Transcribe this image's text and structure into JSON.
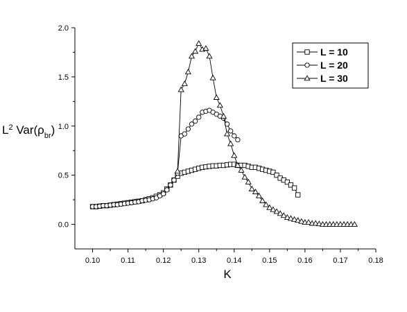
{
  "chart_data": {
    "type": "line",
    "title": "",
    "xlabel": "K",
    "ylabel": {
      "base": "L",
      "sup": "2",
      "middle": " Var(ρ",
      "sub": "br",
      "end": ")"
    },
    "xlim": [
      0.095,
      0.18
    ],
    "ylim": [
      -0.25,
      2.0
    ],
    "xticks": [
      "0.10",
      "0.11",
      "0.12",
      "0.13",
      "0.14",
      "0.15",
      "0.16",
      "0.17",
      "0.18"
    ],
    "yticks": [
      "0.0",
      "0.5",
      "1.0",
      "1.5",
      "2.0"
    ],
    "legend_position": "top-right",
    "grid": false,
    "series": [
      {
        "name": "L = 10",
        "marker": "square",
        "x": [
          0.1,
          0.101,
          0.102,
          0.103,
          0.104,
          0.105,
          0.106,
          0.107,
          0.108,
          0.109,
          0.11,
          0.111,
          0.112,
          0.113,
          0.114,
          0.115,
          0.116,
          0.117,
          0.118,
          0.119,
          0.12,
          0.121,
          0.122,
          0.123,
          0.124,
          0.125,
          0.126,
          0.127,
          0.128,
          0.129,
          0.13,
          0.131,
          0.132,
          0.133,
          0.134,
          0.135,
          0.136,
          0.137,
          0.138,
          0.139,
          0.14,
          0.141,
          0.142,
          0.143,
          0.144,
          0.145,
          0.146,
          0.147,
          0.148,
          0.149,
          0.15,
          0.151,
          0.152,
          0.153,
          0.154,
          0.155,
          0.156,
          0.157,
          0.158
        ],
        "y": [
          0.18,
          0.18,
          0.185,
          0.19,
          0.19,
          0.195,
          0.2,
          0.205,
          0.21,
          0.215,
          0.22,
          0.225,
          0.23,
          0.235,
          0.24,
          0.25,
          0.26,
          0.27,
          0.285,
          0.3,
          0.32,
          0.36,
          0.4,
          0.45,
          0.49,
          0.52,
          0.53,
          0.54,
          0.55,
          0.56,
          0.57,
          0.58,
          0.585,
          0.59,
          0.595,
          0.595,
          0.6,
          0.6,
          0.605,
          0.61,
          0.61,
          0.6,
          0.6,
          0.6,
          0.59,
          0.58,
          0.58,
          0.57,
          0.56,
          0.55,
          0.54,
          0.53,
          0.5,
          0.47,
          0.45,
          0.43,
          0.4,
          0.37,
          0.3
        ]
      },
      {
        "name": "L = 20",
        "marker": "circle",
        "x": [
          0.1,
          0.101,
          0.102,
          0.103,
          0.104,
          0.105,
          0.106,
          0.107,
          0.108,
          0.109,
          0.11,
          0.111,
          0.112,
          0.113,
          0.114,
          0.115,
          0.116,
          0.117,
          0.118,
          0.119,
          0.12,
          0.121,
          0.122,
          0.123,
          0.124,
          0.125,
          0.126,
          0.127,
          0.128,
          0.129,
          0.13,
          0.131,
          0.132,
          0.133,
          0.134,
          0.135,
          0.136,
          0.137,
          0.138,
          0.139,
          0.14,
          0.141
        ],
        "y": [
          0.18,
          0.18,
          0.185,
          0.19,
          0.19,
          0.195,
          0.2,
          0.2,
          0.205,
          0.21,
          0.215,
          0.22,
          0.225,
          0.23,
          0.24,
          0.245,
          0.25,
          0.26,
          0.27,
          0.29,
          0.31,
          0.35,
          0.4,
          0.45,
          0.52,
          0.9,
          0.92,
          0.97,
          1.02,
          1.05,
          1.09,
          1.14,
          1.15,
          1.16,
          1.14,
          1.12,
          1.1,
          1.08,
          1.02,
          0.95,
          0.9,
          0.86
        ]
      },
      {
        "name": "L = 30",
        "marker": "triangle",
        "x": [
          0.124,
          0.125,
          0.126,
          0.127,
          0.128,
          0.129,
          0.13,
          0.131,
          0.132,
          0.133,
          0.134,
          0.135,
          0.136,
          0.137,
          0.138,
          0.139,
          0.14,
          0.141,
          0.142,
          0.143,
          0.144,
          0.145,
          0.146,
          0.147,
          0.148,
          0.149,
          0.15,
          0.151,
          0.152,
          0.153,
          0.154,
          0.155,
          0.156,
          0.157,
          0.158,
          0.159,
          0.16,
          0.161,
          0.162,
          0.163,
          0.164,
          0.165,
          0.166,
          0.167,
          0.168,
          0.169,
          0.17,
          0.171,
          0.172,
          0.173,
          0.174
        ],
        "y": [
          0.54,
          1.37,
          1.43,
          1.55,
          1.71,
          1.76,
          1.84,
          1.78,
          1.79,
          1.71,
          1.49,
          1.29,
          1.21,
          1.1,
          0.92,
          0.82,
          0.7,
          0.6,
          0.55,
          0.48,
          0.43,
          0.36,
          0.33,
          0.29,
          0.24,
          0.2,
          0.17,
          0.15,
          0.13,
          0.11,
          0.09,
          0.07,
          0.06,
          0.05,
          0.04,
          0.03,
          0.02,
          0.02,
          0.01,
          0.01,
          0.005,
          0.0,
          0.0,
          0.0,
          0.0,
          0.0,
          0.0,
          0.0,
          0.0,
          0.0,
          0.0
        ]
      }
    ]
  }
}
